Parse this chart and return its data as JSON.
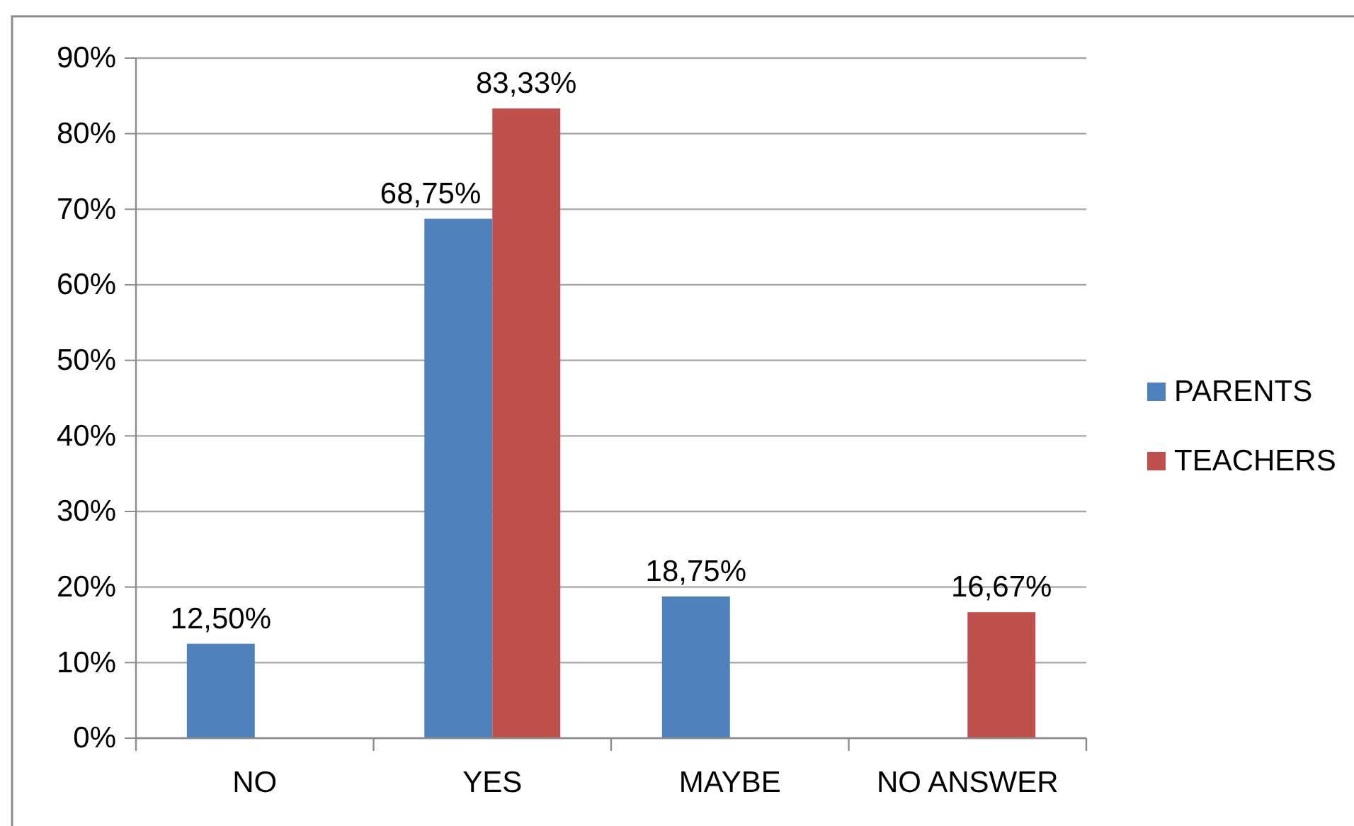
{
  "chart_data": {
    "type": "bar",
    "categories": [
      "NO",
      "YES",
      "MAYBE",
      "NO ANSWER"
    ],
    "series": [
      {
        "name": "PARENTS",
        "color": "#4f81bd",
        "values": [
          12.5,
          68.75,
          18.75,
          null
        ],
        "value_labels": [
          "12,50%",
          "68,75%",
          "18,75%",
          null
        ]
      },
      {
        "name": "TEACHERS",
        "color": "#c0504d",
        "values": [
          null,
          83.33,
          null,
          16.67
        ],
        "value_labels": [
          null,
          "83,33%",
          null,
          "16,67%"
        ]
      }
    ],
    "ylim": [
      0,
      90
    ],
    "yticks": [
      {
        "value": 0,
        "label": "0%"
      },
      {
        "value": 10,
        "label": "10%"
      },
      {
        "value": 20,
        "label": "20%"
      },
      {
        "value": 30,
        "label": "30%"
      },
      {
        "value": 40,
        "label": "40%"
      },
      {
        "value": 50,
        "label": "50%"
      },
      {
        "value": 60,
        "label": "60%"
      },
      {
        "value": 70,
        "label": "70%"
      },
      {
        "value": 80,
        "label": "80%"
      },
      {
        "value": 90,
        "label": "90%"
      }
    ],
    "grid": "y",
    "legend": "right"
  }
}
